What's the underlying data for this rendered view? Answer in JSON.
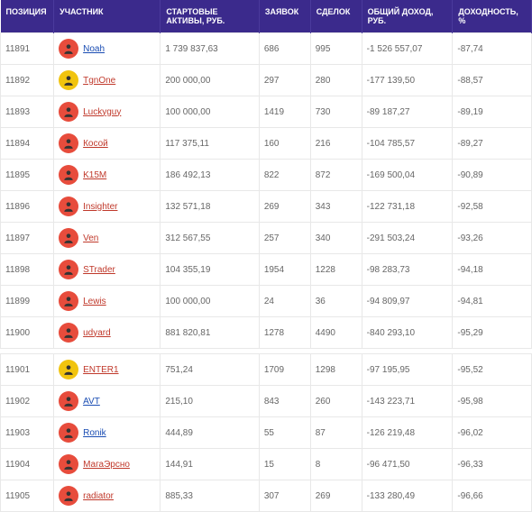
{
  "headers": {
    "pos": "ПОЗИЦИЯ",
    "user": "УЧАСТНИК",
    "assets": "СТАРТОВЫЕ АКТИВЫ, РУБ.",
    "requests": "ЗАЯВОК",
    "deals": "СДЕЛОК",
    "income": "ОБЩИЙ ДОХОД, РУБ.",
    "yield": "ДОХОДНОСТЬ, %"
  },
  "avatar_colors": {
    "red": "#e74c3c",
    "yellow": "#f1c40f"
  },
  "rows": [
    {
      "pos": "11891",
      "name": "Noah",
      "name_color": "blue",
      "avatar": "red",
      "assets": "1 739 837,63",
      "req": "686",
      "deals": "995",
      "income": "-1 526 557,07",
      "yield": "-87,74"
    },
    {
      "pos": "11892",
      "name": "TgnOne",
      "name_color": "red",
      "avatar": "yellow",
      "assets": "200 000,00",
      "req": "297",
      "deals": "280",
      "income": "-177 139,50",
      "yield": "-88,57"
    },
    {
      "pos": "11893",
      "name": "Luckyguy",
      "name_color": "red",
      "avatar": "red",
      "assets": "100 000,00",
      "req": "1419",
      "deals": "730",
      "income": "-89 187,27",
      "yield": "-89,19"
    },
    {
      "pos": "11894",
      "name": "Косой",
      "name_color": "red",
      "avatar": "red",
      "assets": "117 375,11",
      "req": "160",
      "deals": "216",
      "income": "-104 785,57",
      "yield": "-89,27"
    },
    {
      "pos": "11895",
      "name": "K15M",
      "name_color": "red",
      "avatar": "red",
      "assets": "186 492,13",
      "req": "822",
      "deals": "872",
      "income": "-169 500,04",
      "yield": "-90,89"
    },
    {
      "pos": "11896",
      "name": "Insighter",
      "name_color": "red",
      "avatar": "red",
      "assets": "132 571,18",
      "req": "269",
      "deals": "343",
      "income": "-122 731,18",
      "yield": "-92,58"
    },
    {
      "pos": "11897",
      "name": "Ven",
      "name_color": "red",
      "avatar": "red",
      "assets": "312 567,55",
      "req": "257",
      "deals": "340",
      "income": "-291 503,24",
      "yield": "-93,26"
    },
    {
      "pos": "11898",
      "name": "STrader",
      "name_color": "red",
      "avatar": "red",
      "assets": "104 355,19",
      "req": "1954",
      "deals": "1228",
      "income": "-98 283,73",
      "yield": "-94,18"
    },
    {
      "pos": "11899",
      "name": "Lewis",
      "name_color": "red",
      "avatar": "red",
      "assets": "100 000,00",
      "req": "24",
      "deals": "36",
      "income": "-94 809,97",
      "yield": "-94,81"
    },
    {
      "pos": "11900",
      "name": "udyard",
      "name_color": "red",
      "avatar": "red",
      "assets": "881 820,81",
      "req": "1278",
      "deals": "4490",
      "income": "-840 293,10",
      "yield": "-95,29"
    },
    {
      "gap": true
    },
    {
      "pos": "11901",
      "name": "ENTER1",
      "name_color": "red",
      "avatar": "yellow",
      "assets": "751,24",
      "req": "1709",
      "deals": "1298",
      "income": "-97 195,95",
      "yield": "-95,52"
    },
    {
      "pos": "11902",
      "name": "AVT",
      "name_color": "blue",
      "avatar": "red",
      "assets": "215,10",
      "req": "843",
      "deals": "260",
      "income": "-143 223,71",
      "yield": "-95,98"
    },
    {
      "pos": "11903",
      "name": "Ronik",
      "name_color": "blue",
      "avatar": "red",
      "assets": "444,89",
      "req": "55",
      "deals": "87",
      "income": "-126 219,48",
      "yield": "-96,02"
    },
    {
      "pos": "11904",
      "name": "МагаЭрсно",
      "name_color": "red",
      "avatar": "red",
      "assets": "144,91",
      "req": "15",
      "deals": "8",
      "income": "-96 471,50",
      "yield": "-96,33"
    },
    {
      "pos": "11905",
      "name": "radiator",
      "name_color": "red",
      "avatar": "red",
      "assets": "885,33",
      "req": "307",
      "deals": "269",
      "income": "-133 280,49",
      "yield": "-96,66"
    }
  ]
}
